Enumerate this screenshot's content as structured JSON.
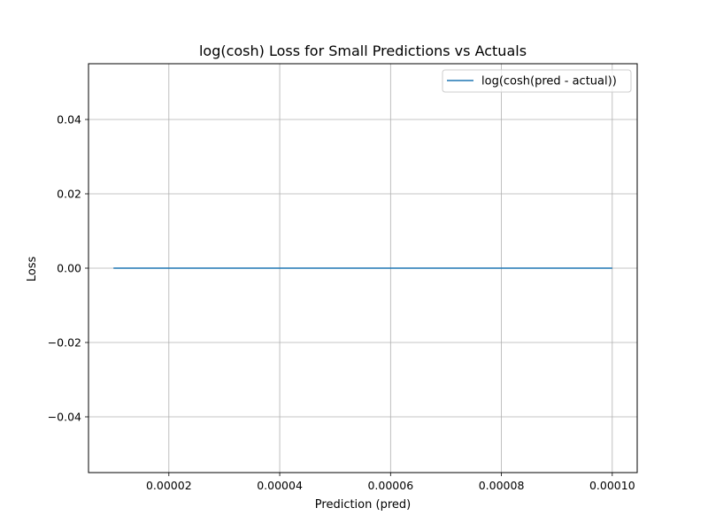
{
  "chart_data": {
    "type": "line",
    "title": "log(cosh) Loss for Small Predictions vs Actuals",
    "xlabel": "Prediction (pred)",
    "ylabel": "Loss",
    "xlim": [
      5.5e-06,
      0.0001045
    ],
    "ylim": [
      -0.055,
      0.055
    ],
    "x_ticks": [
      2e-05,
      4e-05,
      6e-05,
      8e-05,
      0.0001
    ],
    "x_tick_labels": [
      "0.00002",
      "0.00004",
      "0.00006",
      "0.00008",
      "0.00010"
    ],
    "y_ticks": [
      -0.04,
      -0.02,
      0.0,
      0.02,
      0.04
    ],
    "y_tick_labels": [
      "−0.04",
      "−0.02",
      "0.00",
      "0.02",
      "0.04"
    ],
    "grid": true,
    "legend_position": "top-right",
    "series": [
      {
        "name": "log(cosh(pred - actual))",
        "color": "#1f77b4",
        "x": [
          1e-05,
          0.0001
        ],
        "y": [
          0.0,
          0.0
        ]
      }
    ]
  }
}
